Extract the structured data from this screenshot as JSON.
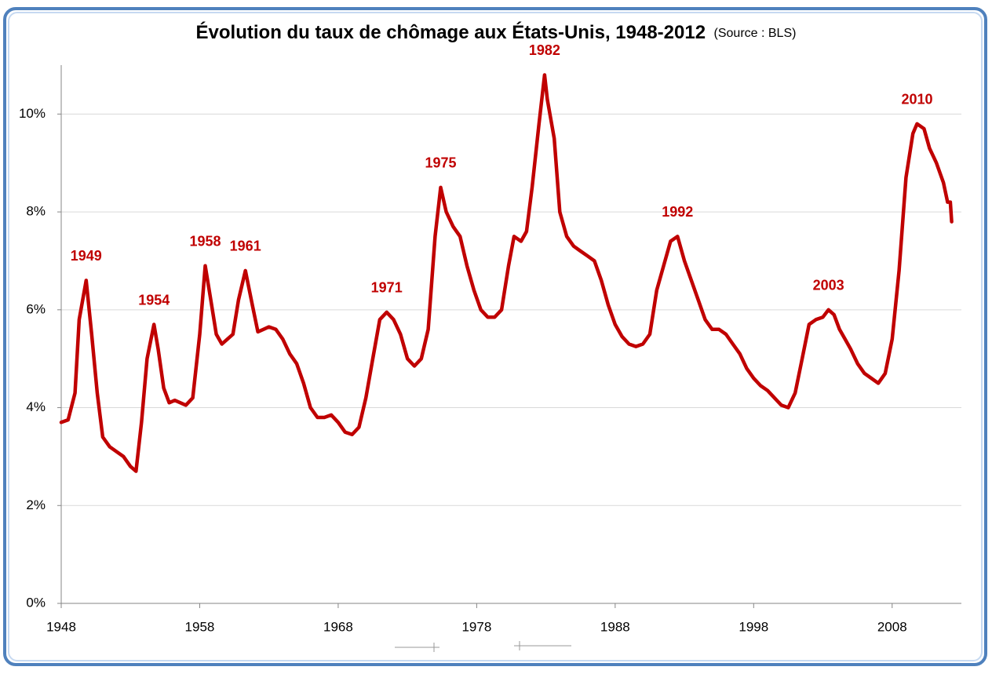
{
  "chart_data": {
    "type": "line",
    "title": "Évolution du taux de chômage aux États-Unis, 1948-2012",
    "subtitle": "(Source : BLS)",
    "xlim": [
      1948,
      2013
    ],
    "xticks": [
      1948,
      1958,
      1968,
      1978,
      1988,
      1998,
      2008
    ],
    "ylim": [
      0,
      11
    ],
    "yticks": [
      {
        "value": 0,
        "label": "0%"
      },
      {
        "value": 2,
        "label": "2%"
      },
      {
        "value": 4,
        "label": "4%"
      },
      {
        "value": 6,
        "label": "6%"
      },
      {
        "value": 8,
        "label": "8%"
      },
      {
        "value": 10,
        "label": "10%"
      }
    ],
    "grid": true,
    "x": [
      1948.0,
      1948.5,
      1949.0,
      1949.3,
      1949.8,
      1950.2,
      1950.6,
      1951.0,
      1951.5,
      1952.0,
      1952.5,
      1953.0,
      1953.4,
      1953.8,
      1954.2,
      1954.7,
      1955.0,
      1955.4,
      1955.8,
      1956.2,
      1956.6,
      1957.0,
      1957.5,
      1958.0,
      1958.4,
      1958.8,
      1959.2,
      1959.6,
      1960.0,
      1960.4,
      1960.8,
      1961.3,
      1961.8,
      1962.2,
      1962.6,
      1963.0,
      1963.5,
      1964.0,
      1964.5,
      1965.0,
      1965.5,
      1966.0,
      1966.5,
      1967.0,
      1967.5,
      1968.0,
      1968.5,
      1969.0,
      1969.5,
      1970.0,
      1970.5,
      1971.0,
      1971.5,
      1972.0,
      1972.5,
      1973.0,
      1973.5,
      1974.0,
      1974.5,
      1975.0,
      1975.4,
      1975.8,
      1976.3,
      1976.8,
      1977.3,
      1977.8,
      1978.3,
      1978.8,
      1979.3,
      1979.8,
      1980.3,
      1980.7,
      1981.2,
      1981.6,
      1982.0,
      1982.5,
      1982.9,
      1983.1,
      1983.6,
      1984.0,
      1984.5,
      1985.0,
      1985.5,
      1986.0,
      1986.5,
      1987.0,
      1987.5,
      1988.0,
      1988.5,
      1989.0,
      1989.5,
      1990.0,
      1990.5,
      1991.0,
      1991.5,
      1992.0,
      1992.5,
      1993.0,
      1993.5,
      1994.0,
      1994.5,
      1995.0,
      1995.5,
      1996.0,
      1996.5,
      1997.0,
      1997.5,
      1998.0,
      1998.5,
      1999.0,
      1999.5,
      2000.0,
      2000.5,
      2001.0,
      2001.5,
      2002.0,
      2002.5,
      2003.0,
      2003.4,
      2003.8,
      2004.2,
      2004.6,
      2005.0,
      2005.5,
      2006.0,
      2006.5,
      2007.0,
      2007.5,
      2008.0,
      2008.5,
      2009.0,
      2009.5,
      2009.8,
      2010.3,
      2010.7,
      2011.2,
      2011.7,
      2012.0,
      2012.2,
      2012.3
    ],
    "series": [
      {
        "color": "#c00000",
        "values": [
          3.7,
          3.75,
          4.3,
          5.8,
          6.6,
          5.5,
          4.3,
          3.4,
          3.2,
          3.1,
          3.0,
          2.8,
          2.7,
          3.7,
          5.0,
          5.7,
          5.2,
          4.4,
          4.1,
          4.15,
          4.1,
          4.05,
          4.2,
          5.5,
          6.9,
          6.2,
          5.5,
          5.3,
          5.4,
          5.5,
          6.2,
          6.8,
          6.1,
          5.55,
          5.6,
          5.65,
          5.6,
          5.4,
          5.1,
          4.9,
          4.5,
          4.0,
          3.8,
          3.8,
          3.85,
          3.7,
          3.5,
          3.45,
          3.6,
          4.2,
          5.0,
          5.8,
          5.95,
          5.8,
          5.5,
          5.0,
          4.85,
          5.0,
          5.6,
          7.5,
          8.5,
          8.0,
          7.7,
          7.5,
          6.9,
          6.4,
          6.0,
          5.85,
          5.85,
          6.0,
          6.9,
          7.5,
          7.4,
          7.6,
          8.5,
          9.8,
          10.8,
          10.3,
          9.5,
          8.0,
          7.5,
          7.3,
          7.2,
          7.1,
          7.0,
          6.6,
          6.1,
          5.7,
          5.45,
          5.3,
          5.25,
          5.3,
          5.5,
          6.4,
          6.9,
          7.4,
          7.5,
          7.0,
          6.6,
          6.2,
          5.8,
          5.6,
          5.6,
          5.5,
          5.3,
          5.1,
          4.8,
          4.6,
          4.45,
          4.35,
          4.2,
          4.05,
          4.0,
          4.3,
          5.0,
          5.7,
          5.8,
          5.85,
          6.0,
          5.9,
          5.6,
          5.4,
          5.2,
          4.9,
          4.7,
          4.6,
          4.5,
          4.7,
          5.4,
          6.8,
          8.7,
          9.6,
          9.8,
          9.7,
          9.3,
          9.0,
          8.6,
          8.2,
          8.2,
          7.8
        ]
      }
    ],
    "annotations": [
      {
        "text": "1949",
        "x": 1949.8,
        "y": 6.6
      },
      {
        "text": "1954",
        "x": 1954.7,
        "y": 5.7
      },
      {
        "text": "1958",
        "x": 1958.4,
        "y": 6.9
      },
      {
        "text": "1961",
        "x": 1961.3,
        "y": 6.8
      },
      {
        "text": "1971",
        "x": 1971.5,
        "y": 5.95
      },
      {
        "text": "1975",
        "x": 1975.4,
        "y": 8.5
      },
      {
        "text": "1982",
        "x": 1982.9,
        "y": 10.8
      },
      {
        "text": "1992",
        "x": 1992.5,
        "y": 7.5
      },
      {
        "text": "2003",
        "x": 2003.4,
        "y": 6.0
      },
      {
        "text": "2010",
        "x": 2009.8,
        "y": 9.8
      }
    ]
  }
}
